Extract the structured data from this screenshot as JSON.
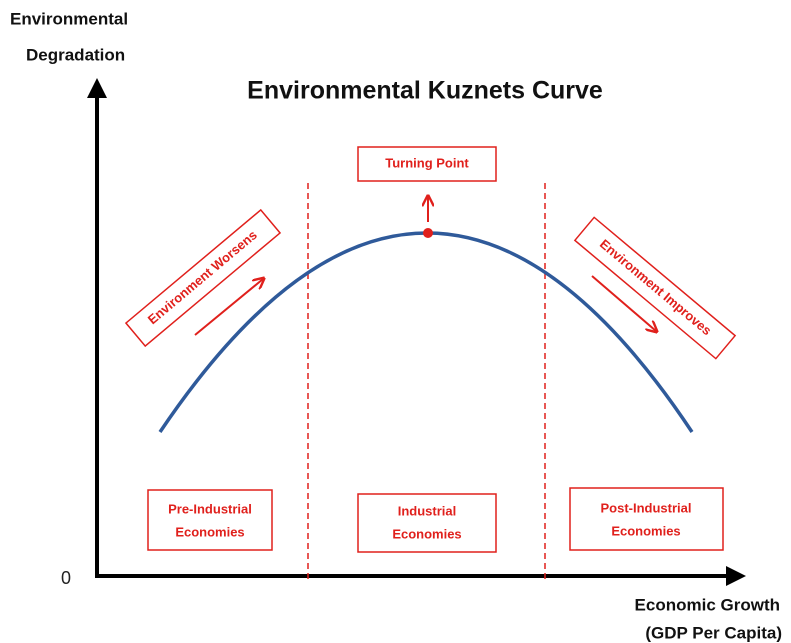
{
  "title": "Environmental Kuznets Curve",
  "y_axis": {
    "label_lines": [
      "Environmental",
      "Degradation"
    ],
    "origin": "0"
  },
  "x_axis": {
    "label_lines": [
      "Economic Growth",
      "(GDP Per Capita)"
    ]
  },
  "annotations": {
    "turning_point": "Turning Point",
    "left_trend": "Environment Worsens",
    "right_trend": "Environment Improves"
  },
  "stages": [
    {
      "lines": [
        "Pre-Industrial",
        "Economies"
      ]
    },
    {
      "lines": [
        "Industrial",
        "Economies"
      ]
    },
    {
      "lines": [
        "Post-Industrial",
        "Economies"
      ]
    }
  ]
}
